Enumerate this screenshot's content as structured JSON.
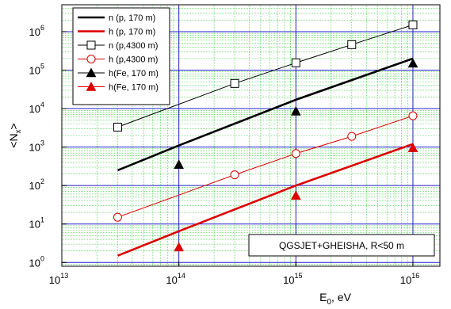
{
  "chart_data": {
    "type": "line",
    "x_scale": "log",
    "y_scale": "log",
    "xlim": [
      10000000000000.0,
      1.7e+16
    ],
    "ylim": [
      0.8,
      5000000.0
    ],
    "xlabel": "E0, eV",
    "xlabel_main": "E",
    "xlabel_sub": "0",
    "xlabel_rest": ", eV",
    "ylabel": "<Nx>",
    "ylabel_open": "<N",
    "ylabel_sub": "x",
    "ylabel_close": ">",
    "grid": "minor-green, major-blue",
    "legend_position": "top-left",
    "annotation": "QGSJET+GHEISHA, R<50 m",
    "x_ticks": [
      {
        "value": 10000000000000.0,
        "base": "10",
        "exp": "13"
      },
      {
        "value": 100000000000000.0,
        "base": "10",
        "exp": "14"
      },
      {
        "value": 1000000000000000.0,
        "base": "10",
        "exp": "15"
      },
      {
        "value": 1e+16,
        "base": "10",
        "exp": "16"
      }
    ],
    "y_ticks": [
      {
        "value": 1,
        "base": "10",
        "exp": "0"
      },
      {
        "value": 10,
        "base": "10",
        "exp": "1"
      },
      {
        "value": 100,
        "base": "10",
        "exp": "2"
      },
      {
        "value": 1000,
        "base": "10",
        "exp": "3"
      },
      {
        "value": 10000,
        "base": "10",
        "exp": "4"
      },
      {
        "value": 100000,
        "base": "10",
        "exp": "5"
      },
      {
        "value": 1000000,
        "base": "10",
        "exp": "6"
      }
    ],
    "series": [
      {
        "name": "n (p, 170 m)",
        "color": "#000000",
        "line_width": 2.6,
        "marker": "none",
        "x": [
          30000000000000.0,
          100000000000000.0,
          1000000000000000.0,
          1e+16
        ],
        "y": [
          250,
          1100,
          17000,
          200000
        ]
      },
      {
        "name": "h (p, 170 m)",
        "color": "#dd0000",
        "line_width": 2.6,
        "marker": "none",
        "x": [
          30000000000000.0,
          100000000000000.0,
          1000000000000000.0,
          1e+16
        ],
        "y": [
          1.5,
          6.5,
          100,
          1200
        ]
      },
      {
        "name": "n (p,4300 m)",
        "color": "#000000",
        "line_width": 1,
        "marker": "open-square",
        "x": [
          30000000000000.0,
          300000000000000.0,
          1000000000000000.0,
          3000000000000000.0,
          1e+16
        ],
        "y": [
          3300,
          45000,
          155000,
          460000,
          1500000
        ]
      },
      {
        "name": "h (p,4300 m)",
        "color": "#dd0000",
        "line_width": 1,
        "marker": "open-circle",
        "x": [
          30000000000000.0,
          300000000000000.0,
          1000000000000000.0,
          3000000000000000.0,
          1e+16
        ],
        "y": [
          15,
          190,
          680,
          1900,
          6500
        ]
      },
      {
        "name": "h(Fe, 170 m)",
        "color": "#000000",
        "line_width": 0,
        "marker": "filled-triangle",
        "x": [
          100000000000000.0,
          1000000000000000.0,
          1e+16
        ],
        "y": [
          350,
          8500,
          150000
        ]
      },
      {
        "name": "h(Fe, 170 m)",
        "color": "#dd0000",
        "line_width": 0,
        "marker": "filled-triangle",
        "x": [
          100000000000000.0,
          1000000000000000.0,
          1e+16
        ],
        "y": [
          2.5,
          55,
          950
        ]
      }
    ]
  }
}
